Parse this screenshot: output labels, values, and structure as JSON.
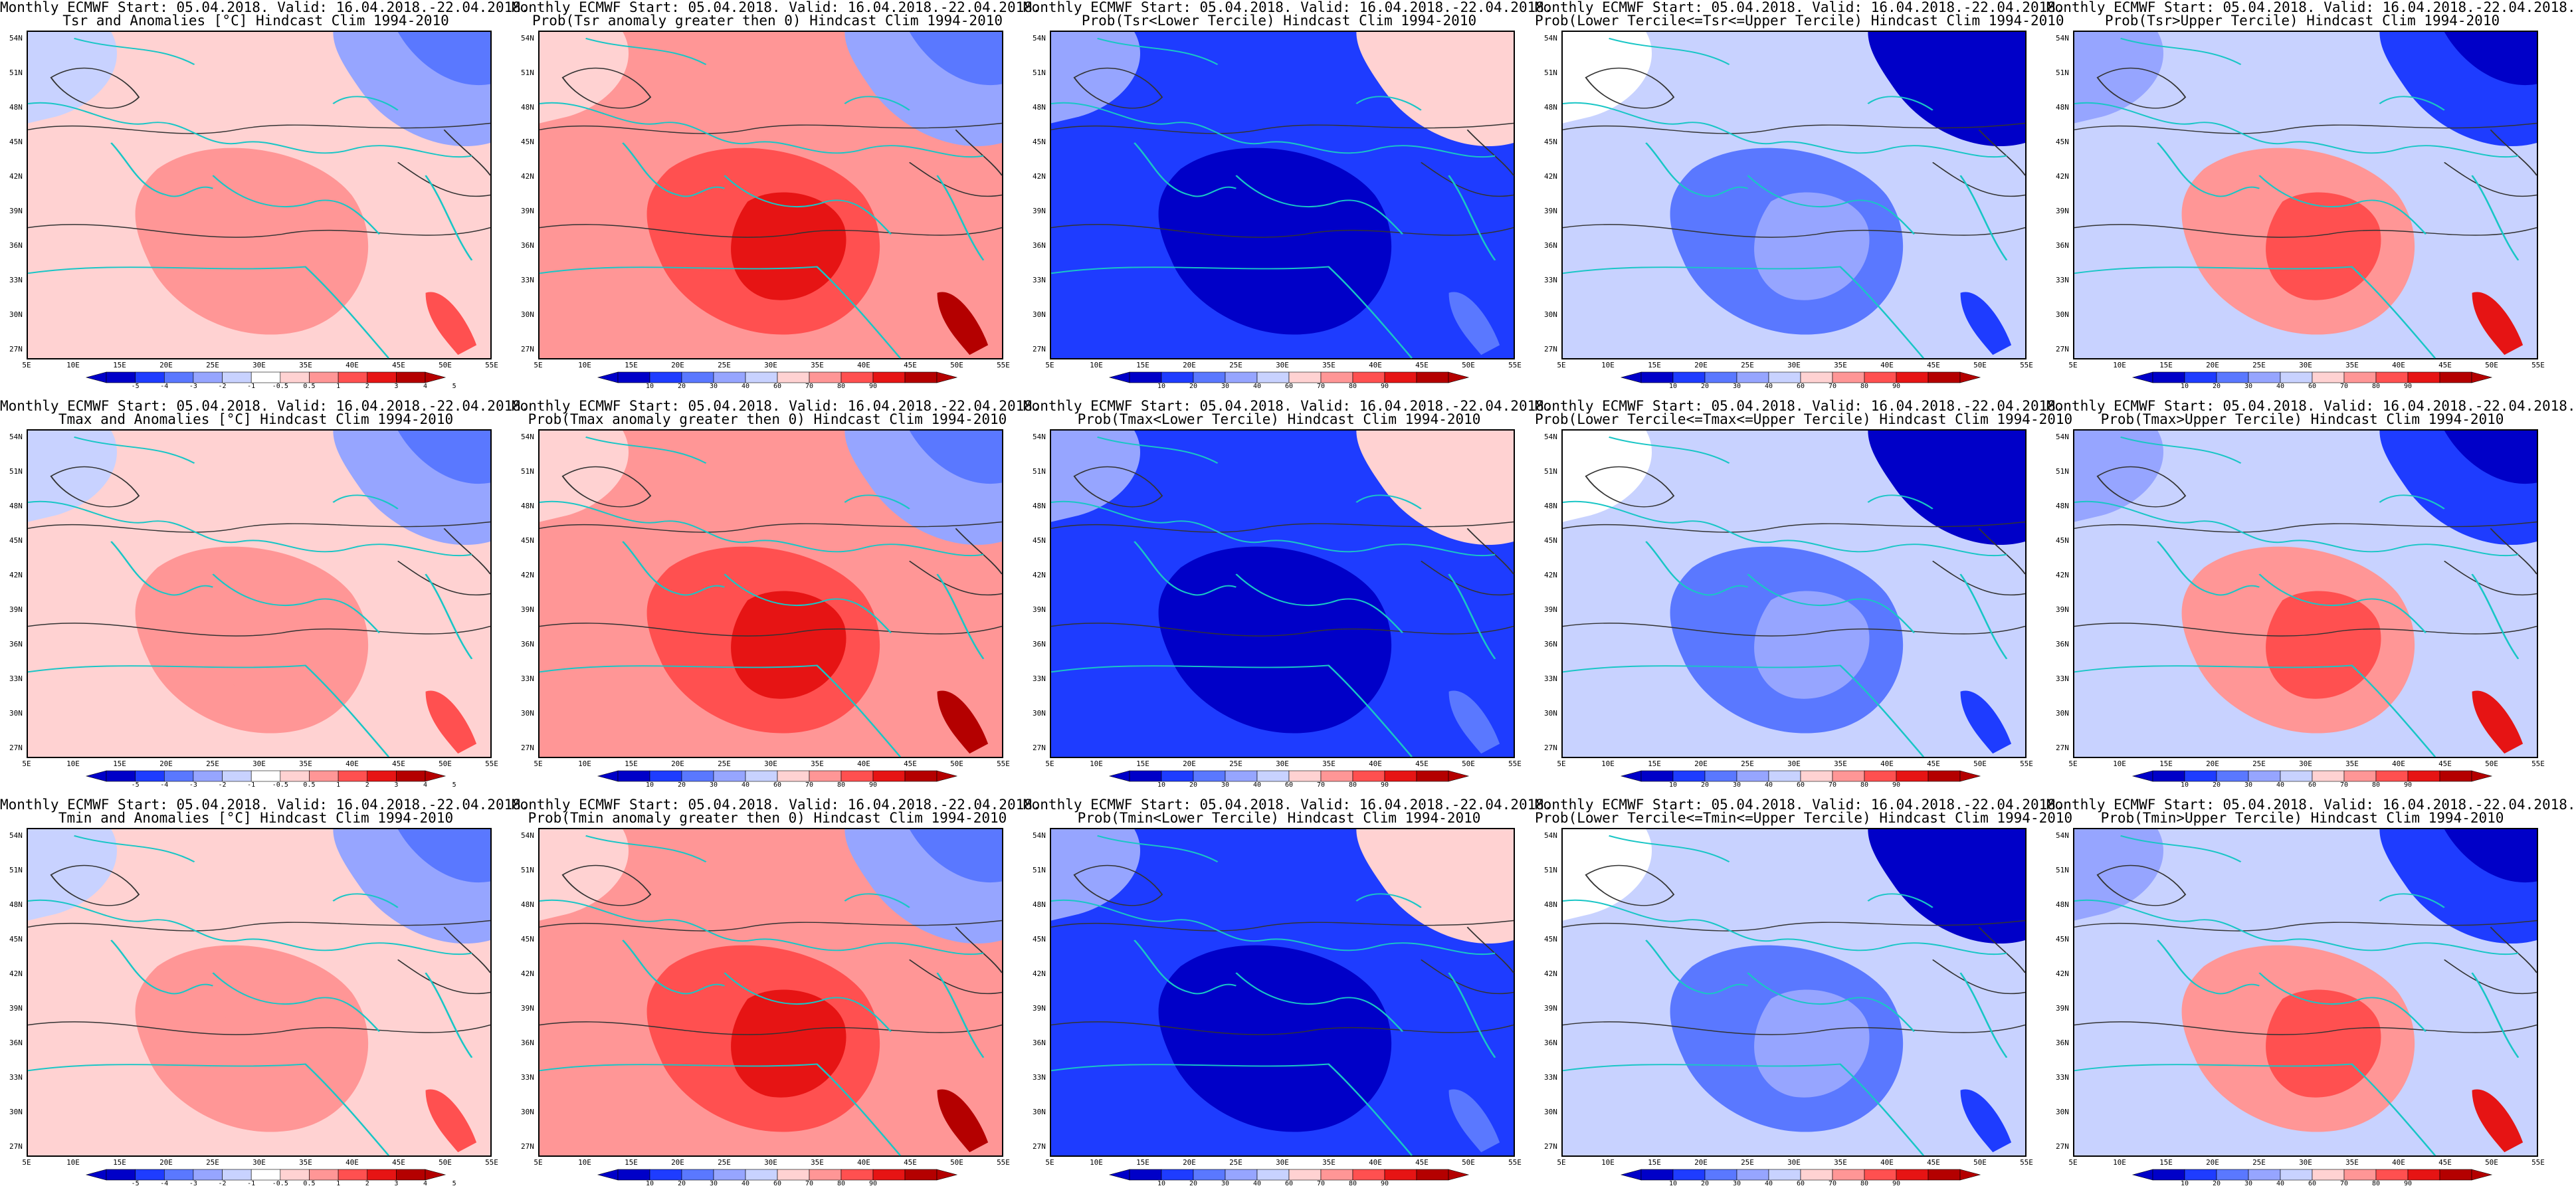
{
  "common_title": "Monthly ECMWF Start: 05.04.2018. Valid: 16.04.2018.-22.04.2018.",
  "lat_labels": [
    "54N",
    "51N",
    "48N",
    "45N",
    "42N",
    "39N",
    "36N",
    "33N",
    "30N",
    "27N"
  ],
  "lon_labels": [
    "5E",
    "10E",
    "15E",
    "20E",
    "25E",
    "30E",
    "35E",
    "40E",
    "45E",
    "50E",
    "55E"
  ],
  "anom_ticks": [
    "-5",
    "-4",
    "-3",
    "-2",
    "-1",
    "-0.5",
    "0.5",
    "1",
    "2",
    "3",
    "4",
    "5"
  ],
  "prob_ticks": [
    "10",
    "20",
    "30",
    "40",
    "60",
    "70",
    "80",
    "90"
  ],
  "colors": {
    "boundary": "#19c6c6",
    "contour": "#333333",
    "scale": [
      "#0000c8",
      "#1e3cff",
      "#5a78ff",
      "#96a5ff",
      "#c8d2ff",
      "#ffffff",
      "#ffd2d2",
      "#ff9696",
      "#ff5050",
      "#e61414",
      "#b40000"
    ]
  },
  "panels": [
    {
      "row": 0,
      "col": 0,
      "kind": "anom",
      "title2": "Tsr and Anomalies [°C] Hindcast Clim 1994-2010",
      "color_key": "anom-warm"
    },
    {
      "row": 0,
      "col": 1,
      "kind": "prob",
      "title2": "Prob(Tsr anomaly greater then 0) Hindcast Clim 1994-2010",
      "color_key": "prob-red"
    },
    {
      "row": 0,
      "col": 2,
      "kind": "prob",
      "title2": "Prob(Tsr<Lower Tercile) Hindcast Clim 1994-2010",
      "color_key": "prob-blue"
    },
    {
      "row": 0,
      "col": 3,
      "kind": "prob",
      "title2": "Prob(Lower Tercile<=Tsr<=Upper Tercile) Hindcast Clim 1994-2010",
      "color_key": "prob-mid"
    },
    {
      "row": 0,
      "col": 4,
      "kind": "prob",
      "title2": "Prob(Tsr>Upper Tercile) Hindcast Clim 1994-2010",
      "color_key": "prob-upper"
    },
    {
      "row": 1,
      "col": 0,
      "kind": "anom",
      "title2": "Tmax and Anomalies [°C] Hindcast Clim 1994-2010",
      "color_key": "anom-warm"
    },
    {
      "row": 1,
      "col": 1,
      "kind": "prob",
      "title2": "Prob(Tmax anomaly greater then 0) Hindcast Clim 1994-2010",
      "color_key": "prob-red"
    },
    {
      "row": 1,
      "col": 2,
      "kind": "prob",
      "title2": "Prob(Tmax<Lower Tercile) Hindcast Clim 1994-2010",
      "color_key": "prob-blue"
    },
    {
      "row": 1,
      "col": 3,
      "kind": "prob",
      "title2": "Prob(Lower Tercile<=Tmax<=Upper Tercile) Hindcast Clim 1994-2010",
      "color_key": "prob-mid"
    },
    {
      "row": 1,
      "col": 4,
      "kind": "prob",
      "title2": "Prob(Tmax>Upper Tercile) Hindcast Clim 1994-2010",
      "color_key": "prob-upper"
    },
    {
      "row": 2,
      "col": 0,
      "kind": "anom",
      "title2": "Tmin and Anomalies [°C] Hindcast Clim 1994-2010",
      "color_key": "anom-warm"
    },
    {
      "row": 2,
      "col": 1,
      "kind": "prob",
      "title2": "Prob(Tmin anomaly greater then 0) Hindcast Clim 1994-2010",
      "color_key": "prob-red"
    },
    {
      "row": 2,
      "col": 2,
      "kind": "prob",
      "title2": "Prob(Tmin<Lower Tercile) Hindcast Clim 1994-2010",
      "color_key": "prob-blue"
    },
    {
      "row": 2,
      "col": 3,
      "kind": "prob",
      "title2": "Prob(Lower Tercile<=Tmin<=Upper Tercile) Hindcast Clim 1994-2010",
      "color_key": "prob-mid"
    },
    {
      "row": 2,
      "col": 4,
      "kind": "prob",
      "title2": "Prob(Tmin>Upper Tercile) Hindcast Clim 1994-2010",
      "color_key": "prob-upper"
    }
  ]
}
